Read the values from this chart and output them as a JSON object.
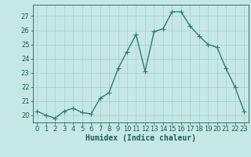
{
  "x": [
    0,
    1,
    2,
    3,
    4,
    5,
    6,
    7,
    8,
    9,
    10,
    11,
    12,
    13,
    14,
    15,
    16,
    17,
    18,
    19,
    20,
    21,
    22,
    23
  ],
  "y": [
    20.3,
    20.0,
    19.8,
    20.3,
    20.5,
    20.2,
    20.1,
    21.2,
    21.6,
    23.3,
    24.5,
    25.7,
    23.1,
    25.9,
    26.1,
    27.3,
    27.3,
    26.3,
    25.6,
    25.0,
    24.8,
    23.3,
    22.0,
    20.3
  ],
  "line_color": "#2e7d6e",
  "marker": "o",
  "marker_size": 2.0,
  "line_width": 1.0,
  "bg_color": "#c5e8e5",
  "grid_color": "#a8d0cc",
  "tick_color": "#1a5c5c",
  "xlabel": "Humidex (Indice chaleur)",
  "ylim": [
    19.5,
    27.8
  ],
  "xlim": [
    -0.5,
    23.5
  ],
  "yticks": [
    20,
    21,
    22,
    23,
    24,
    25,
    26,
    27
  ],
  "xticks": [
    0,
    1,
    2,
    3,
    4,
    5,
    6,
    7,
    8,
    9,
    10,
    11,
    12,
    13,
    14,
    15,
    16,
    17,
    18,
    19,
    20,
    21,
    22,
    23
  ],
  "xlabel_fontsize": 7,
  "tick_fontsize": 6
}
